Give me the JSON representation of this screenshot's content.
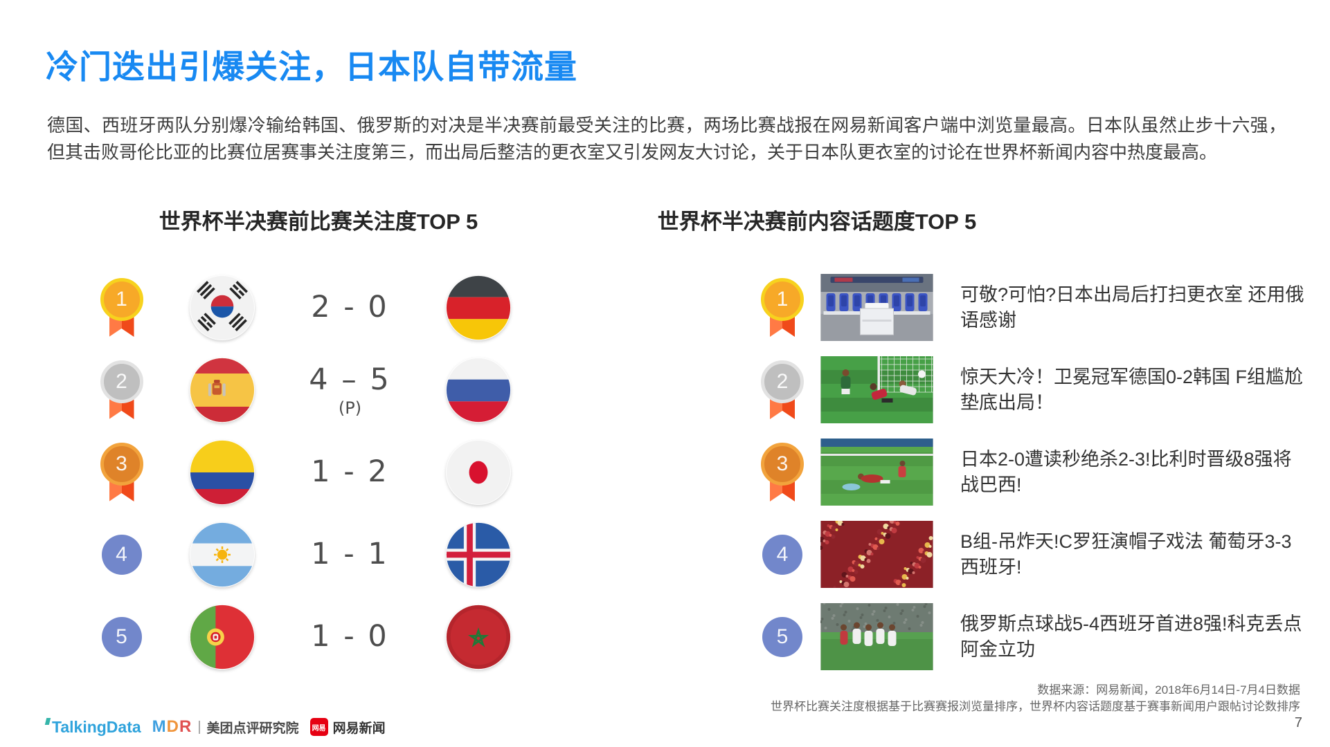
{
  "slide": {
    "title": "冷门迭出引爆关注，日本队自带流量",
    "paragraph": "德国、西班牙两队分别爆冷输给韩国、俄罗斯的对决是半决赛前最受关注的比赛，两场比赛战报在网易新闻客户端中浏览量最高。日本队虽然止步十六强，但其击败哥伦比亚的比赛位居赛事关注度第三，而出局后整洁的更衣室又引发网友大讨论，关于日本队更衣室的讨论在世界杯新闻内容中热度最高。",
    "page_number": "7"
  },
  "left_section": {
    "title": "世界杯半决赛前比赛关注度TOP 5",
    "rows": [
      {
        "rank": "1",
        "medal": "gold",
        "home_flag": "south-korea",
        "score": "2 - 0",
        "note": "",
        "away_flag": "germany"
      },
      {
        "rank": "2",
        "medal": "silver",
        "home_flag": "spain",
        "score": "4 – 5",
        "note": "(P)",
        "away_flag": "russia"
      },
      {
        "rank": "3",
        "medal": "bronze",
        "home_flag": "colombia",
        "score": "1 - 2",
        "note": "",
        "away_flag": "japan"
      },
      {
        "rank": "4",
        "medal": "plain",
        "home_flag": "argentina",
        "score": "1 - 1",
        "note": "",
        "away_flag": "iceland"
      },
      {
        "rank": "5",
        "medal": "plain",
        "home_flag": "portugal",
        "score": "1 - 0",
        "note": "",
        "away_flag": "morocco"
      }
    ]
  },
  "right_section": {
    "title": "世界杯半决赛前内容话题度TOP 5",
    "rows": [
      {
        "rank": "1",
        "medal": "gold",
        "thumbnail": "japan-locker-room",
        "headline": "可敬?可怕?日本出局后打扫更衣室 还用俄语感谢"
      },
      {
        "rank": "2",
        "medal": "silver",
        "thumbnail": "germany-korea-goal",
        "headline": "惊天大冷！卫冕冠军德国0-2韩国 F组尴尬垫底出局！"
      },
      {
        "rank": "3",
        "medal": "bronze",
        "thumbnail": "japan-belgium-pitch",
        "headline": "日本2-0遭读秒绝杀2-3!比利时晋级8强将战巴西!"
      },
      {
        "rank": "4",
        "medal": "plain",
        "thumbnail": "portugal-spain-fans",
        "headline": "B组-吊炸天!C罗狂演帽子戏法 葡萄牙3-3西班牙!"
      },
      {
        "rank": "5",
        "medal": "plain",
        "thumbnail": "russia-penalty-celebration",
        "headline": "俄罗斯点球战5-4西班牙首进8强!科克丢点阿金立功"
      }
    ]
  },
  "footer": {
    "source_line1": "数据来源：网易新闻，2018年6月14日-7月4日数据",
    "source_line2": "世界杯比赛关注度根据基于比赛赛报浏览量排序，世界杯内容话题度基于赛事新闻用户跟帖讨论数排序",
    "logos": {
      "talkingdata": "TalkingData",
      "mdr_letters": [
        "M",
        "D",
        "R"
      ],
      "divider": "|",
      "meituan": "美团点评研究院",
      "netease_badge": "网易",
      "netease": "网易新闻"
    }
  },
  "colors": {
    "title_blue": "#1889F2",
    "body_text": "#3D3D3D",
    "heading_text": "#262626",
    "score_text": "#4D4D4D",
    "medal_gold": "#F7A928",
    "medal_gold_ring": "#F7D21E",
    "medal_silver": "#BFBFBF",
    "medal_silver_ring": "#E2E2E2",
    "medal_bronze": "#DF8329",
    "medal_bronze_ring": "#F2A33C",
    "medal_plain_blue": "#7287CB",
    "ribbon_orange": "#F04A1A",
    "talkingdata_blue": "#2FA3DC",
    "netease_red": "#E60012"
  }
}
